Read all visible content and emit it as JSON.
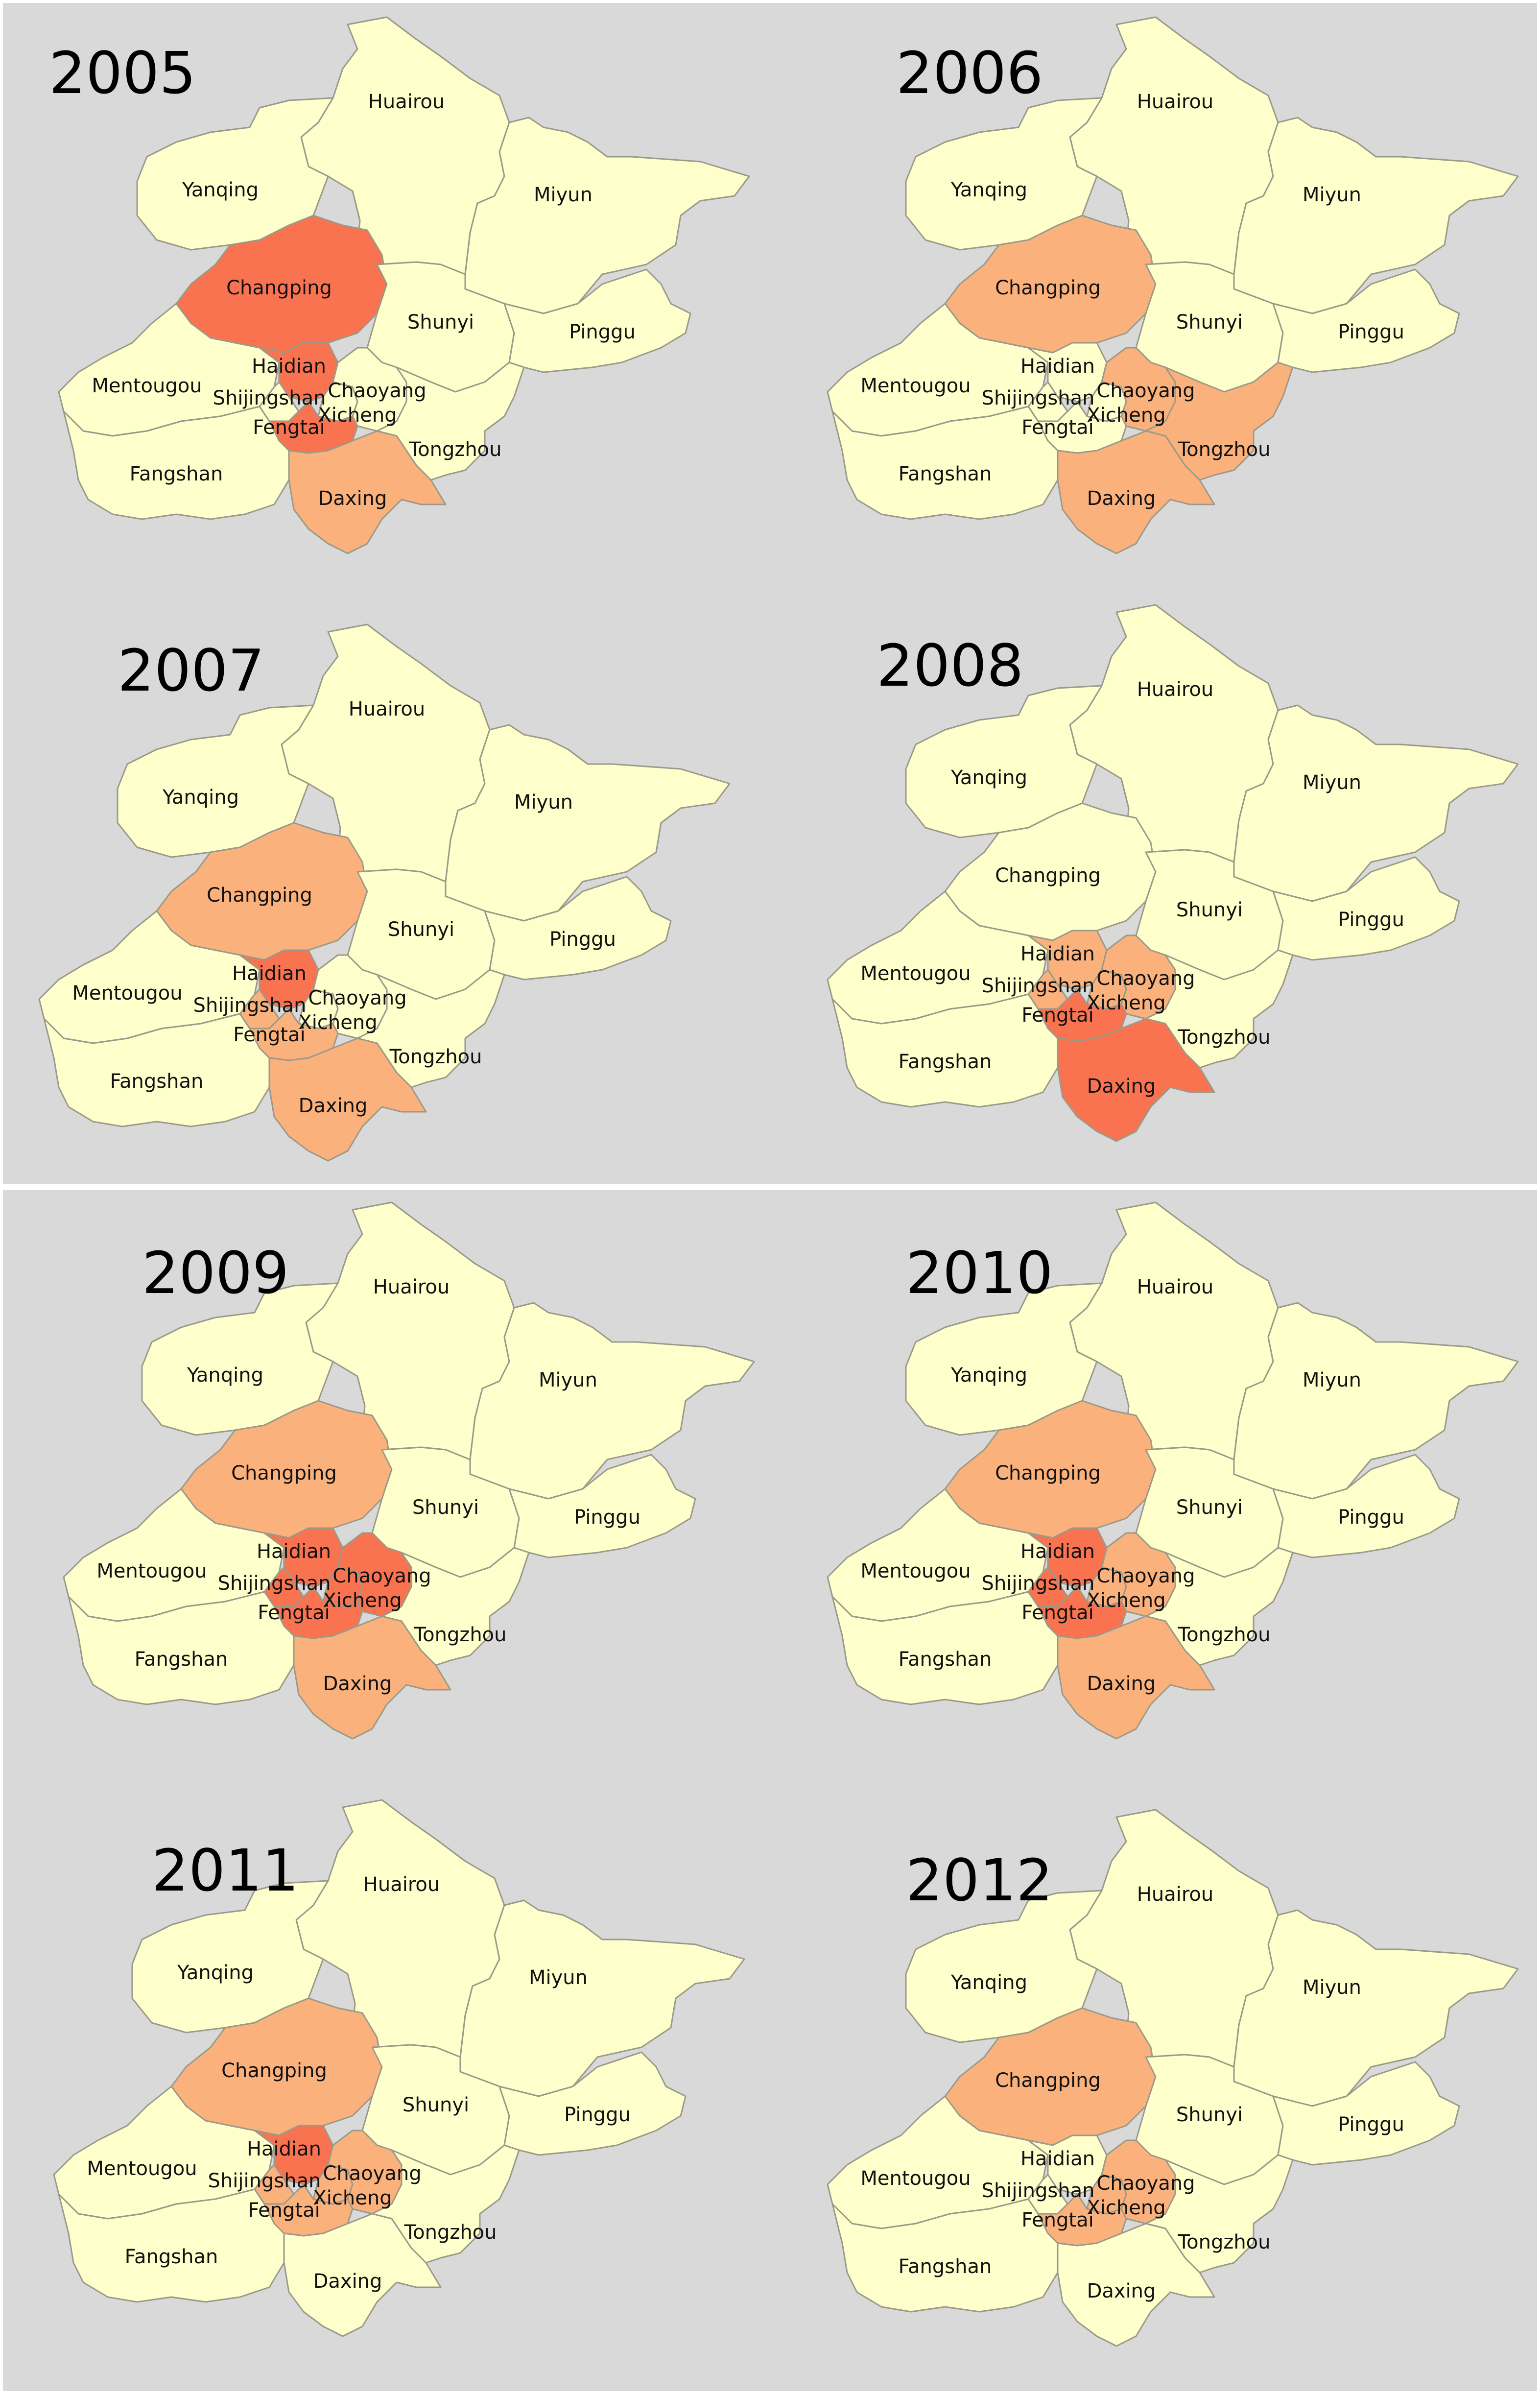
{
  "colors": {
    "level1": "#ffffcc",
    "level2": "#fbb17c",
    "level3": "#f97350"
  },
  "district_names": {
    "huairou": "Huairou",
    "yanqing": "Yanqing",
    "miyun": "Miyun",
    "changping": "Changping",
    "shunyi": "Shunyi",
    "pinggu": "Pinggu",
    "mentougou": "Mentougou",
    "haidian": "Haidian",
    "shijingshan": "Shijingshan",
    "chaoyang": "Chaoyang",
    "xicheng": "Xicheng",
    "fengtai": "Fengtai",
    "tongzhou": "Tongzhou",
    "fangshan": "Fangshan",
    "daxing": "Daxing"
  },
  "maps": [
    {
      "year": "2005",
      "levels": {
        "huairou": 1,
        "yanqing": 1,
        "miyun": 1,
        "changping": 3,
        "shunyi": 1,
        "pinggu": 1,
        "mentougou": 1,
        "haidian": 3,
        "shijingshan": 1,
        "chaoyang": 1,
        "xicheng": 1,
        "fengtai": 3,
        "tongzhou": 1,
        "fangshan": 1,
        "daxing": 2
      }
    },
    {
      "year": "2006",
      "levels": {
        "huairou": 1,
        "yanqing": 1,
        "miyun": 1,
        "changping": 2,
        "shunyi": 1,
        "pinggu": 1,
        "mentougou": 1,
        "haidian": 1,
        "shijingshan": 1,
        "chaoyang": 2,
        "xicheng": 1,
        "fengtai": 1,
        "tongzhou": 2,
        "fangshan": 1,
        "daxing": 2
      }
    },
    {
      "year": "2007",
      "levels": {
        "huairou": 1,
        "yanqing": 1,
        "miyun": 1,
        "changping": 2,
        "shunyi": 1,
        "pinggu": 1,
        "mentougou": 1,
        "haidian": 3,
        "shijingshan": 2,
        "chaoyang": 1,
        "xicheng": 1,
        "fengtai": 2,
        "tongzhou": 1,
        "fangshan": 1,
        "daxing": 2
      }
    },
    {
      "year": "2008",
      "levels": {
        "huairou": 1,
        "yanqing": 1,
        "miyun": 1,
        "changping": 1,
        "shunyi": 1,
        "pinggu": 1,
        "mentougou": 1,
        "haidian": 2,
        "shijingshan": 2,
        "chaoyang": 2,
        "xicheng": 2,
        "fengtai": 3,
        "tongzhou": 1,
        "fangshan": 1,
        "daxing": 3
      }
    },
    {
      "year": "2009",
      "levels": {
        "huairou": 1,
        "yanqing": 1,
        "miyun": 1,
        "changping": 2,
        "shunyi": 1,
        "pinggu": 1,
        "mentougou": 1,
        "haidian": 3,
        "shijingshan": 3,
        "chaoyang": 3,
        "xicheng": 3,
        "fengtai": 3,
        "tongzhou": 1,
        "fangshan": 1,
        "daxing": 2
      }
    },
    {
      "year": "2010",
      "levels": {
        "huairou": 1,
        "yanqing": 1,
        "miyun": 1,
        "changping": 2,
        "shunyi": 1,
        "pinggu": 1,
        "mentougou": 1,
        "haidian": 3,
        "shijingshan": 3,
        "chaoyang": 2,
        "xicheng": 2,
        "fengtai": 3,
        "tongzhou": 1,
        "fangshan": 1,
        "daxing": 2
      }
    },
    {
      "year": "2011",
      "levels": {
        "huairou": 1,
        "yanqing": 1,
        "miyun": 1,
        "changping": 2,
        "shunyi": 1,
        "pinggu": 1,
        "mentougou": 1,
        "haidian": 3,
        "shijingshan": 2,
        "chaoyang": 2,
        "xicheng": 2,
        "fengtai": 2,
        "tongzhou": 1,
        "fangshan": 1,
        "daxing": 1
      }
    },
    {
      "year": "2012",
      "levels": {
        "huairou": 1,
        "yanqing": 1,
        "miyun": 1,
        "changping": 2,
        "shunyi": 1,
        "pinggu": 1,
        "mentougou": 1,
        "haidian": 1,
        "shijingshan": 1,
        "chaoyang": 2,
        "xicheng": 2,
        "fengtai": 2,
        "tongzhou": 1,
        "fangshan": 1,
        "daxing": 1
      }
    }
  ]
}
